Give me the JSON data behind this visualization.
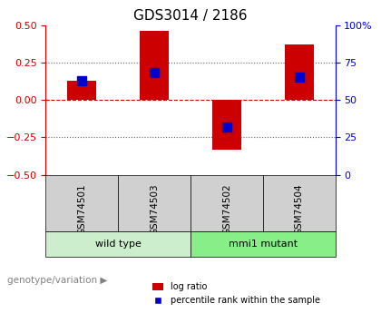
{
  "title": "GDS3014 / 2186",
  "samples": [
    "GSM74501",
    "GSM74503",
    "GSM74502",
    "GSM74504"
  ],
  "log_ratio": [
    0.13,
    0.46,
    -0.33,
    0.37
  ],
  "percentile_rank": [
    0.63,
    0.68,
    0.32,
    0.65
  ],
  "groups": [
    {
      "label": "wild type",
      "indices": [
        0,
        1
      ],
      "color": "#cceecc"
    },
    {
      "label": "mmi1 mutant",
      "indices": [
        2,
        3
      ],
      "color": "#88ee88"
    }
  ],
  "group_label": "genotype/variation",
  "ylim": [
    -0.5,
    0.5
  ],
  "yticks_left": [
    -0.5,
    -0.25,
    0,
    0.25,
    0.5
  ],
  "yticks_right": [
    0,
    25,
    50,
    75,
    100
  ],
  "bar_color": "#cc0000",
  "dot_color": "#0000cc",
  "hline_zero_color": "#cc0000",
  "dotted_line_color": "#666666",
  "legend_bar_label": "log ratio",
  "legend_dot_label": "percentile rank within the sample",
  "bar_width": 0.4,
  "dot_size": 60
}
